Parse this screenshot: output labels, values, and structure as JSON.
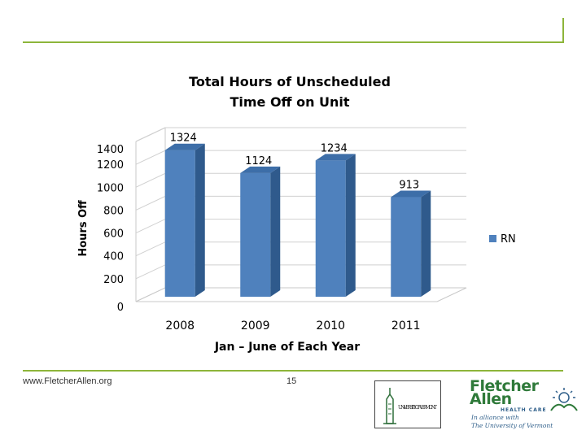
{
  "chart_data": {
    "type": "bar",
    "title": [
      "Total Hours of Unscheduled",
      "Time Off on Unit"
    ],
    "categories": [
      "2008",
      "2009",
      "2010",
      "2011"
    ],
    "series": [
      {
        "name": "RN",
        "values": [
          1324,
          1124,
          1234,
          913
        ],
        "color": "#4f81bd"
      }
    ],
    "data_labels": [
      "1324",
      "1124",
      "1234",
      "913"
    ],
    "xlabel": "Jan – June of Each Year",
    "ylabel": "Hours Off",
    "ylim": [
      0,
      1400
    ],
    "yticks": [
      0,
      200,
      400,
      600,
      800,
      1000,
      1200,
      1400
    ],
    "grid": true,
    "legend_position": "right"
  },
  "footer": {
    "url": "www.FletcherAllen.org",
    "page_number": "15"
  },
  "logos": {
    "uvm": "UNIVERSITY OF VERMONT",
    "fletcher_allen_line1": "Fletcher",
    "fletcher_allen_line2": "Allen",
    "health_care": "HEALTH CARE",
    "alliance_line1": "In alliance with",
    "alliance_line2": "The University of Vermont"
  }
}
